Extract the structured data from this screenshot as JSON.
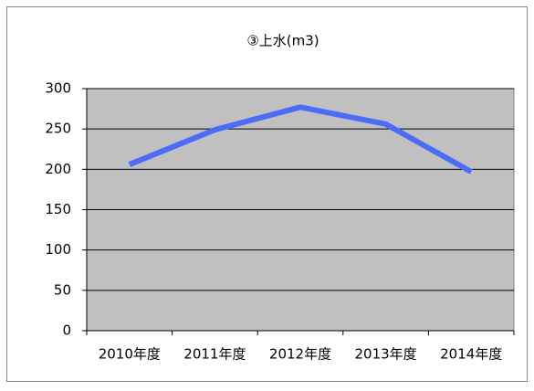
{
  "chart_data": {
    "type": "line",
    "title": "③上水(m3)",
    "categories": [
      "2010年度",
      "2011年度",
      "2012年度",
      "2013年度",
      "2014年度"
    ],
    "series": [
      {
        "name": "上水",
        "color": "#4a6cf7",
        "values": [
          206,
          249,
          277,
          256,
          197
        ]
      }
    ],
    "ylim": [
      0,
      300
    ],
    "yticks": [
      0,
      50,
      100,
      150,
      200,
      250,
      300
    ],
    "grid": true
  }
}
